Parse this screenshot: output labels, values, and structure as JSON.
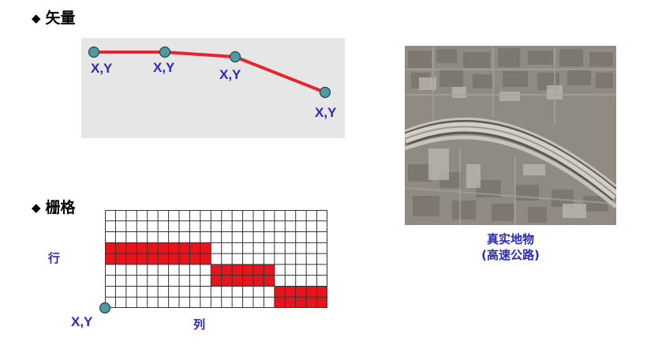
{
  "vector": {
    "heading": "矢量",
    "bullet": "◆",
    "point_labels": [
      "X,Y",
      "X,Y",
      "X,Y",
      "X,Y"
    ],
    "line_color": "#e8242e",
    "node_color": "#4f9aa1"
  },
  "raster": {
    "heading": "栅格",
    "bullet": "◆",
    "row_label": "行",
    "col_label": "列",
    "origin_label": "X,Y",
    "fill_color": "#e8141c",
    "grid": {
      "cols": 21,
      "rows": 9,
      "filled": [
        {
          "row": 3,
          "col_start": 0,
          "col_end": 10
        },
        {
          "row": 4,
          "col_start": 0,
          "col_end": 10
        },
        {
          "row": 5,
          "col_start": 10,
          "col_end": 16
        },
        {
          "row": 6,
          "col_start": 10,
          "col_end": 16
        },
        {
          "row": 7,
          "col_start": 16,
          "col_end": 21
        },
        {
          "row": 8,
          "col_start": 16,
          "col_end": 21
        }
      ]
    }
  },
  "photo": {
    "caption_line1": "真实地物",
    "caption_line2": "(高速公路)"
  }
}
